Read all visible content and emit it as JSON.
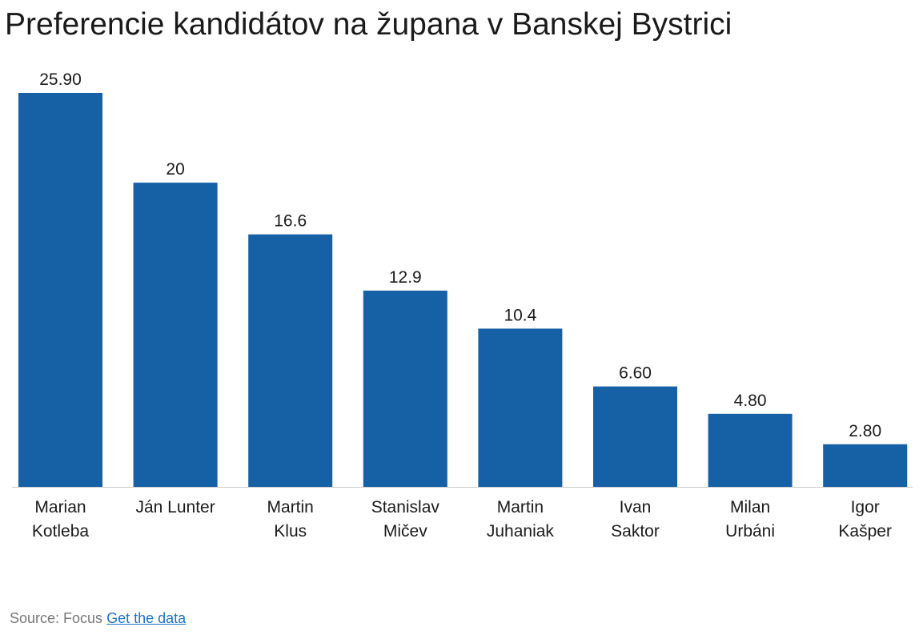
{
  "chart_data": {
    "type": "bar",
    "title": "Preferencie kandidátov na župana v Banskej Bystrici",
    "categories": [
      [
        "Marian",
        "Kotleba"
      ],
      [
        "Ján Lunter"
      ],
      [
        "Martin",
        "Klus"
      ],
      [
        "Stanislav",
        "Mičev"
      ],
      [
        "Martin",
        "Juhaniak"
      ],
      [
        "Ivan",
        "Saktor"
      ],
      [
        "Milan",
        "Urbáni"
      ],
      [
        "Igor",
        "Kašper"
      ]
    ],
    "values": [
      25.9,
      20,
      16.6,
      12.9,
      10.4,
      6.6,
      4.8,
      2.8
    ],
    "value_labels": [
      "25.90",
      "20",
      "16.6",
      "12.9",
      "10.4",
      "6.60",
      "4.80",
      "2.80"
    ],
    "ylim": [
      0,
      25.9
    ],
    "grid": false,
    "colors": {
      "bar": "#1660a6",
      "axis": "#cccccc"
    }
  },
  "footer": {
    "source_text": "Source: Focus",
    "link_text": "Get the data"
  }
}
